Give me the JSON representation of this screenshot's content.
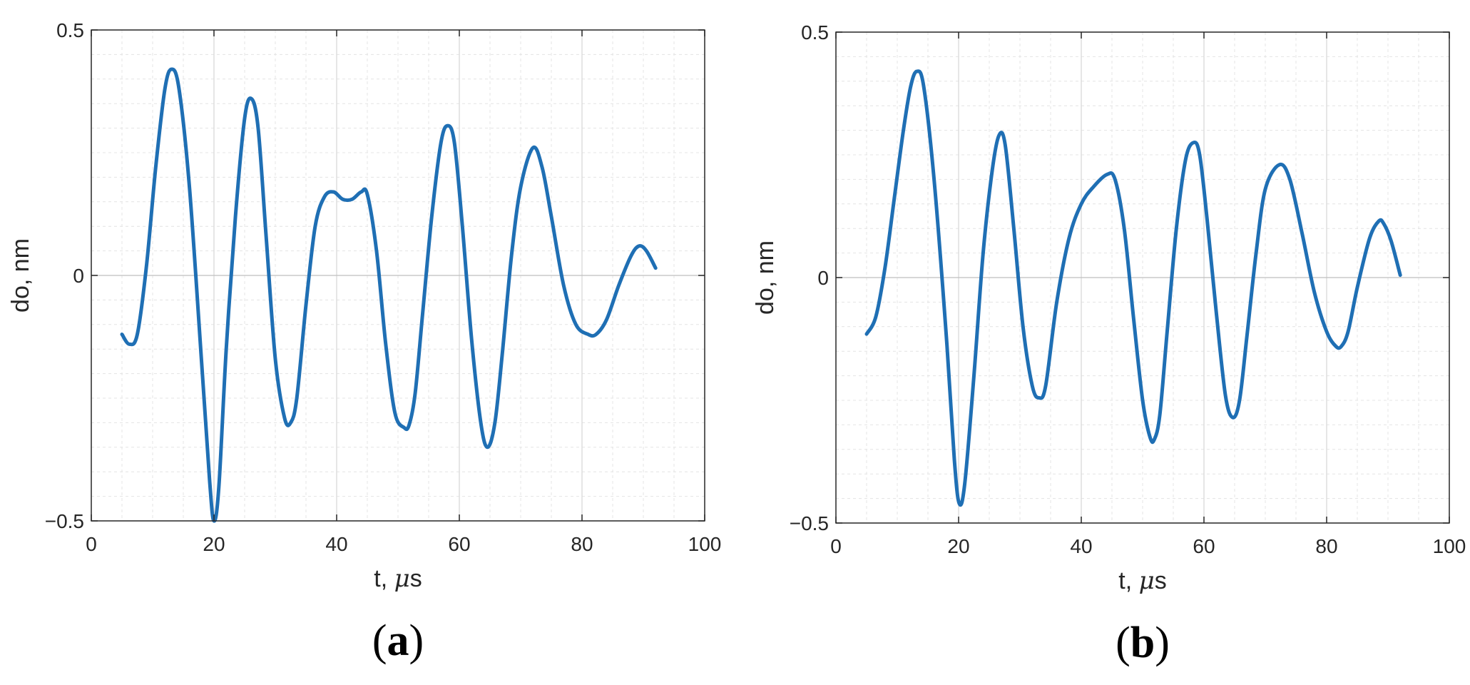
{
  "chart_data": [
    {
      "type": "line",
      "panel_label": "a",
      "xlabel": "t, μs",
      "xlabel_text": "t,",
      "xlabel_unit_prefix": "μ",
      "xlabel_unit": "s",
      "ylabel": "do, nm",
      "xlim": [
        0,
        100
      ],
      "ylim": [
        -0.5,
        0.5
      ],
      "xticks": [
        0,
        20,
        40,
        60,
        80,
        100
      ],
      "xtick_labels": [
        "0",
        "20",
        "40",
        "60",
        "80",
        "100"
      ],
      "yticks": [
        -0.5,
        0,
        0.5
      ],
      "ytick_labels": [
        "−0.5",
        "0",
        "0.5"
      ],
      "grid": true,
      "minor_grid": true,
      "color": "#1f6fb4",
      "series": [
        {
          "x": [
            5,
            6.2,
            7.5,
            9,
            10.5,
            12,
            13.1,
            14.3,
            16,
            18,
            19.3,
            20,
            20.8,
            22,
            23.5,
            25,
            26.1,
            27.2,
            28.5,
            30,
            31.5,
            32.5,
            33.5,
            35,
            36.5,
            38,
            39.5,
            41,
            42.5,
            44,
            45,
            46.5,
            48,
            49.5,
            51,
            51.8,
            52.8,
            54,
            55.5,
            57,
            58.1,
            59.2,
            60.5,
            62,
            63.5,
            64.6,
            65.8,
            67,
            68.5,
            70,
            72,
            73.5,
            75,
            77,
            79,
            81,
            82.3,
            84,
            86,
            88,
            89.3,
            90.5,
            92
          ],
          "y": [
            -0.12,
            -0.14,
            -0.12,
            0.02,
            0.22,
            0.38,
            0.42,
            0.38,
            0.18,
            -0.18,
            -0.42,
            -0.5,
            -0.43,
            -0.15,
            0.12,
            0.32,
            0.36,
            0.3,
            0.08,
            -0.17,
            -0.29,
            -0.3,
            -0.25,
            -0.06,
            0.1,
            0.16,
            0.17,
            0.155,
            0.155,
            0.17,
            0.165,
            0.05,
            -0.14,
            -0.28,
            -0.31,
            -0.305,
            -0.24,
            -0.08,
            0.12,
            0.27,
            0.305,
            0.27,
            0.1,
            -0.13,
            -0.3,
            -0.35,
            -0.3,
            -0.16,
            0.04,
            0.18,
            0.26,
            0.22,
            0.12,
            -0.02,
            -0.1,
            -0.12,
            -0.12,
            -0.09,
            -0.02,
            0.04,
            0.06,
            0.05,
            0.015
          ]
        }
      ]
    },
    {
      "type": "line",
      "panel_label": "b",
      "xlabel": "t, μs",
      "xlabel_text": "t,",
      "xlabel_unit_prefix": "μ",
      "xlabel_unit": "s",
      "ylabel": "do, nm",
      "xlim": [
        0,
        100
      ],
      "ylim": [
        -0.5,
        0.5
      ],
      "xticks": [
        0,
        20,
        40,
        60,
        80,
        100
      ],
      "xtick_labels": [
        "0",
        "20",
        "40",
        "60",
        "80",
        "100"
      ],
      "yticks": [
        -0.5,
        0,
        0.5
      ],
      "ytick_labels": [
        "−0.5",
        "0",
        "0.5"
      ],
      "grid": true,
      "minor_grid": true,
      "color": "#1f6fb4",
      "series": [
        {
          "x": [
            5,
            6.5,
            8,
            9.5,
            11,
            12.2,
            13.2,
            14.3,
            16,
            18,
            19.3,
            20.1,
            21,
            22.5,
            24,
            25.5,
            26.6,
            27.6,
            29,
            30.5,
            32,
            33.1,
            34.2,
            36,
            38,
            40,
            42,
            44.2,
            45.5,
            47,
            48.5,
            50,
            51.2,
            51.9,
            52.8,
            54,
            55.5,
            57,
            58.3,
            59.3,
            60.5,
            62,
            63.5,
            64.7,
            65.8,
            67,
            68.5,
            70,
            72.3,
            74,
            76,
            78,
            80,
            81.5,
            82.4,
            83.5,
            85,
            87,
            88.5,
            89.3,
            90.5,
            92
          ],
          "y": [
            -0.115,
            -0.08,
            0.02,
            0.16,
            0.3,
            0.39,
            0.42,
            0.39,
            0.2,
            -0.12,
            -0.37,
            -0.46,
            -0.42,
            -0.2,
            0.05,
            0.22,
            0.29,
            0.27,
            0.1,
            -0.1,
            -0.22,
            -0.245,
            -0.22,
            -0.05,
            0.08,
            0.15,
            0.185,
            0.21,
            0.2,
            0.1,
            -0.08,
            -0.25,
            -0.325,
            -0.33,
            -0.28,
            -0.11,
            0.1,
            0.24,
            0.275,
            0.25,
            0.12,
            -0.07,
            -0.24,
            -0.285,
            -0.25,
            -0.12,
            0.05,
            0.18,
            0.23,
            0.2,
            0.09,
            -0.03,
            -0.11,
            -0.14,
            -0.14,
            -0.11,
            -0.02,
            0.08,
            0.115,
            0.11,
            0.075,
            0.005
          ]
        }
      ]
    }
  ]
}
